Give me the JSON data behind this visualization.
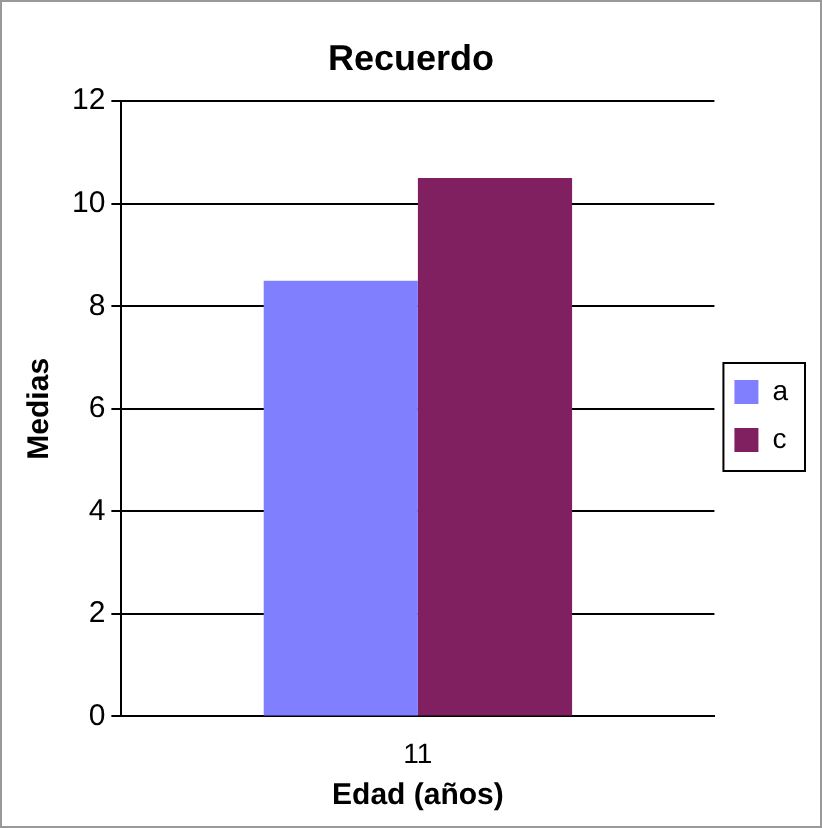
{
  "chart_data": {
    "type": "bar",
    "title": "Recuerdo",
    "xlabel": "Edad (años)",
    "ylabel": "Medias",
    "categories": [
      "11"
    ],
    "series": [
      {
        "name": "a",
        "color": "#8080ff",
        "values": [
          8.5
        ]
      },
      {
        "name": "c",
        "color": "#802060",
        "values": [
          10.5
        ]
      }
    ],
    "ylim": [
      0,
      12
    ],
    "yticks": [
      0,
      2,
      4,
      6,
      8,
      10,
      12
    ],
    "grid": "y",
    "legend": "right"
  }
}
